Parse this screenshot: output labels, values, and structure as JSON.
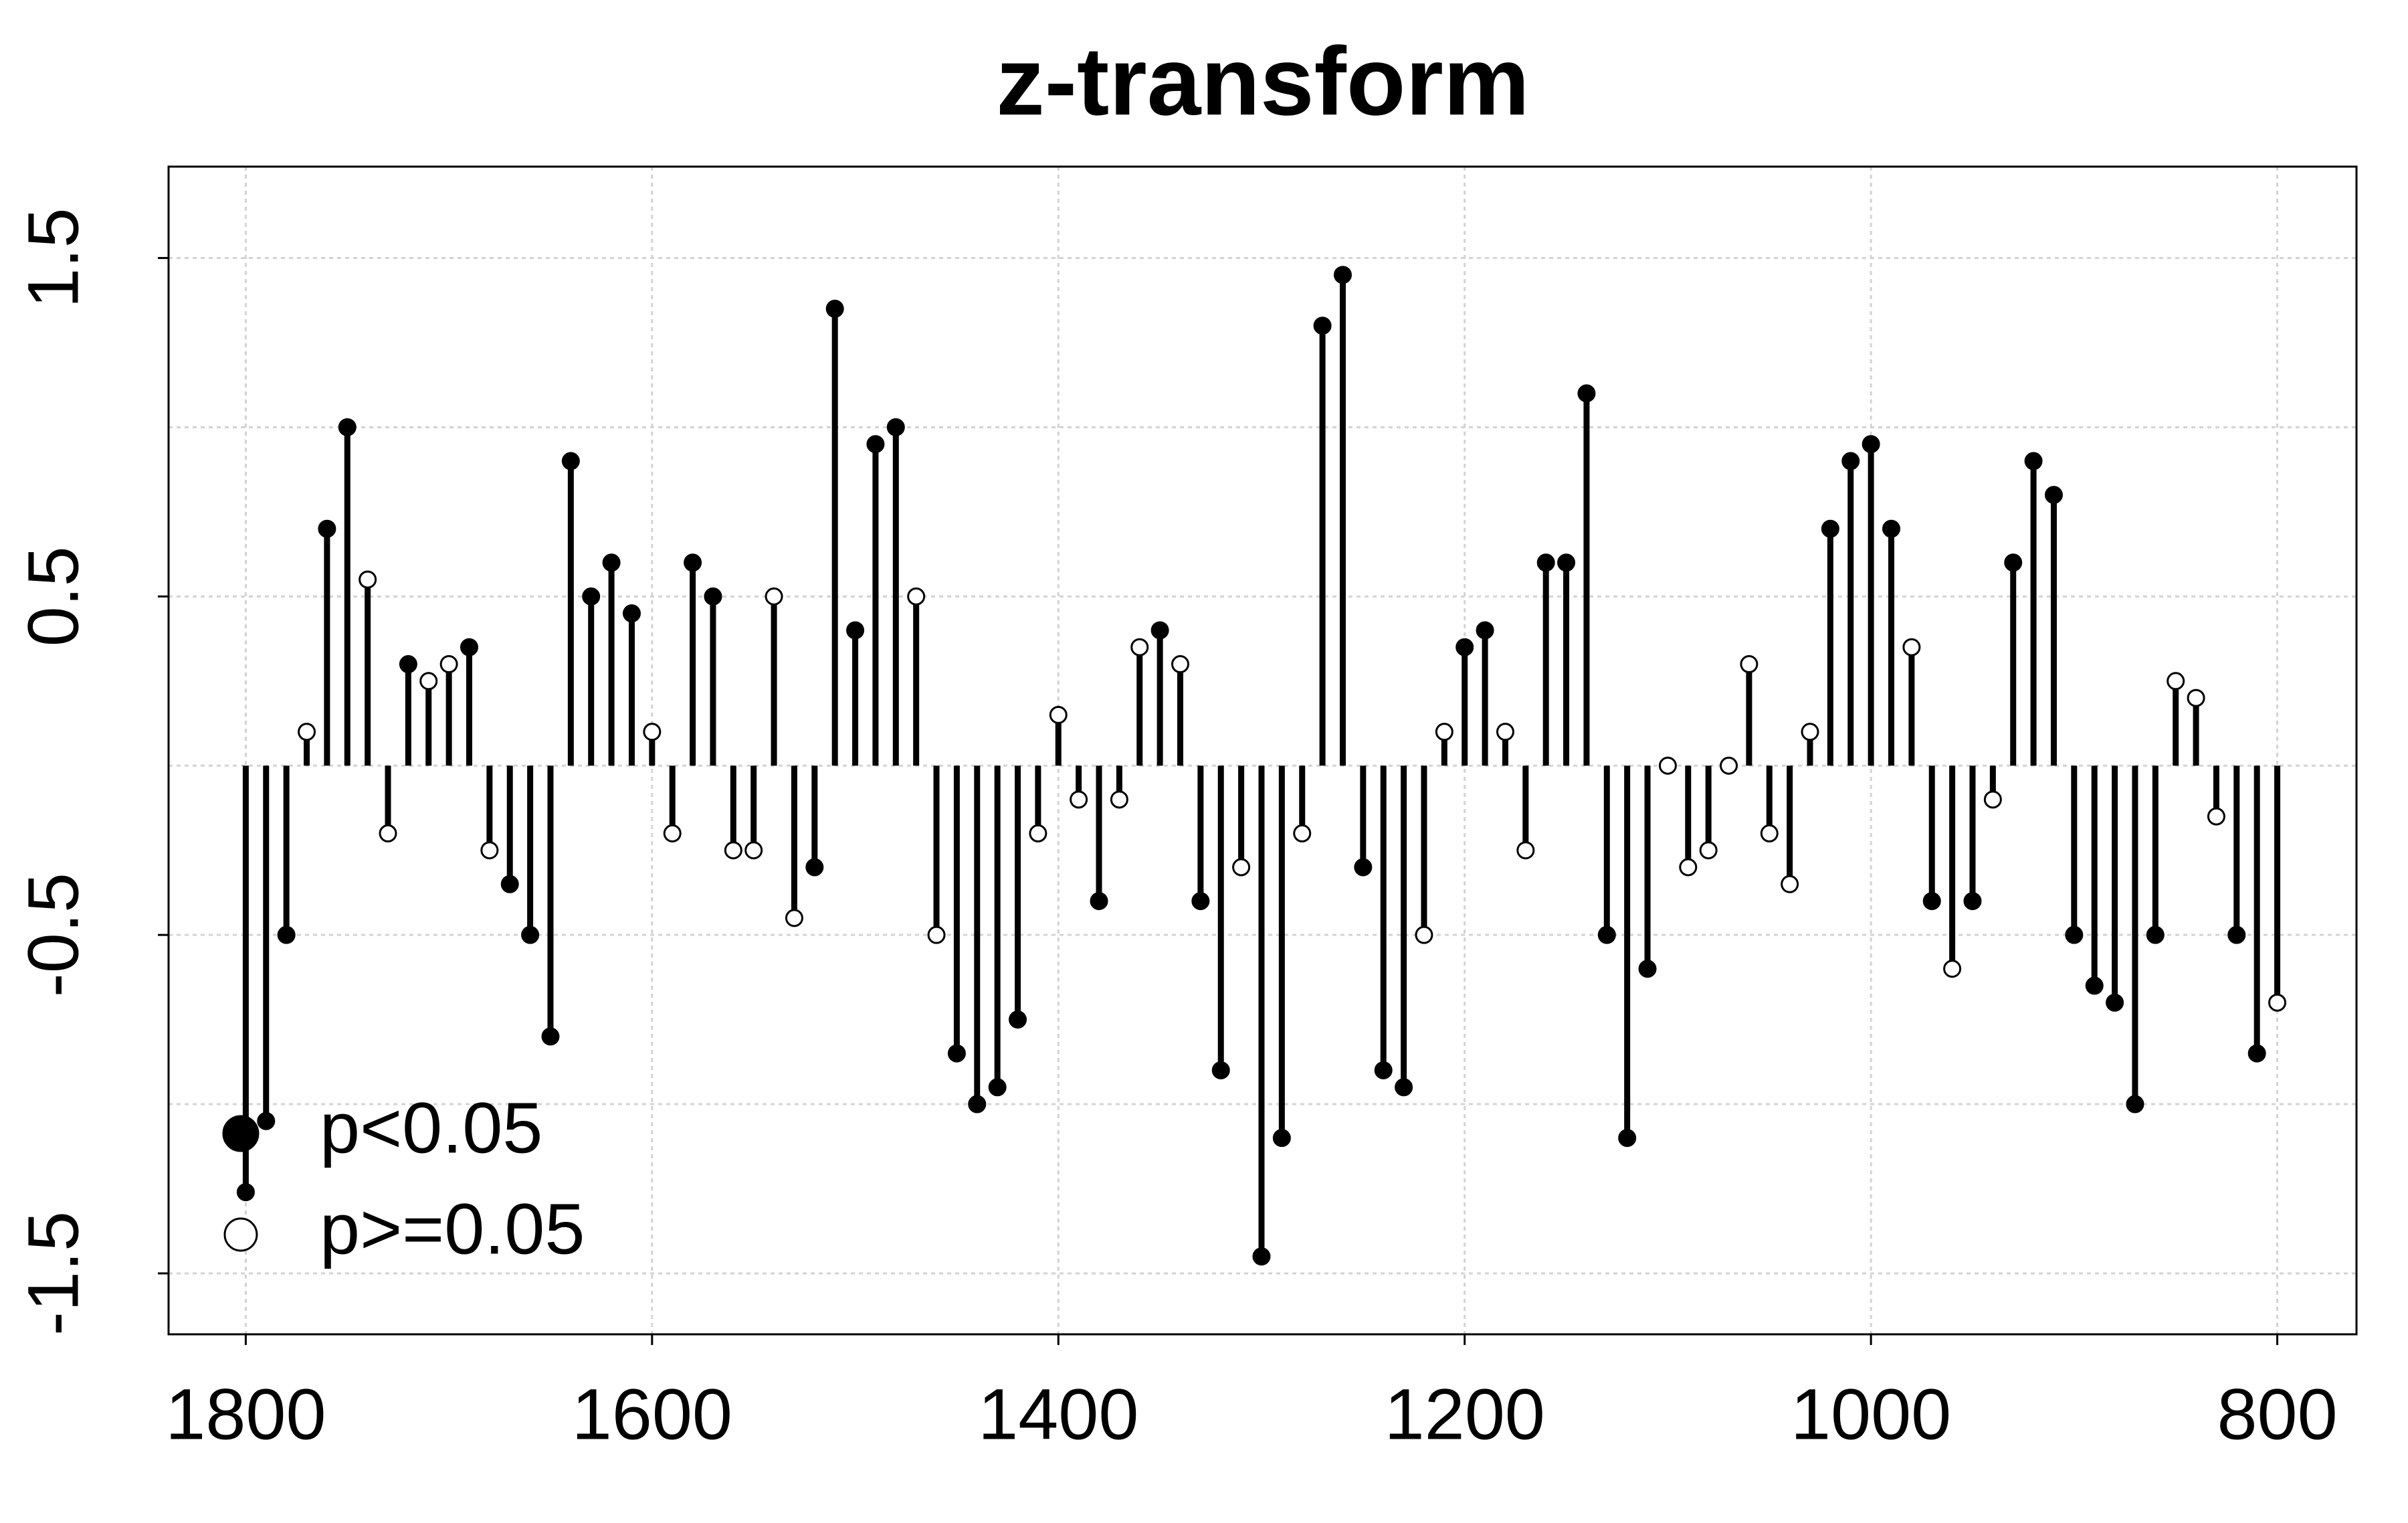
{
  "chart_data": {
    "type": "scatter",
    "title": "z-transform",
    "xlim": [
      1838,
      761
    ],
    "xticks": [
      1800,
      1600,
      1400,
      1200,
      1000,
      800
    ],
    "ylim": [
      -1.68,
      1.77
    ],
    "yticks": [
      -1.5,
      -0.5,
      0.5,
      1.5
    ],
    "grid_yticks": [
      -1.5,
      -1,
      -0.5,
      0,
      0.5,
      1,
      1.5
    ],
    "grid": true,
    "vertical_lines": true,
    "legend": "bottom-left",
    "series": [
      {
        "name": "p<0.05",
        "color": "#000000",
        "marker": "filled",
        "x": [
          1800,
          1790,
          1780,
          1760,
          1750,
          1720,
          1690,
          1670,
          1660,
          1650,
          1640,
          1630,
          1620,
          1610,
          1580,
          1570,
          1520,
          1510,
          1500,
          1490,
          1480,
          1450,
          1440,
          1430,
          1420,
          1380,
          1350,
          1330,
          1320,
          1300,
          1290,
          1270,
          1260,
          1250,
          1240,
          1230,
          1200,
          1190,
          1160,
          1150,
          1140,
          1130,
          1120,
          1110,
          1020,
          1010,
          1000,
          990,
          970,
          950,
          930,
          920,
          910,
          900,
          890,
          880,
          870,
          860,
          820,
          810
        ],
        "values": [
          -1.26,
          -1.05,
          -0.5,
          0.7,
          1.0,
          0.3,
          0.35,
          -0.35,
          -0.5,
          -0.8,
          0.9,
          0.5,
          0.6,
          0.45,
          0.6,
          0.5,
          -0.3,
          1.35,
          0.4,
          0.95,
          1.0,
          -0.85,
          -1.0,
          -0.95,
          -0.75,
          -0.4,
          0.4,
          -0.4,
          -0.9,
          -1.45,
          -1.1,
          1.3,
          1.45,
          -0.3,
          -0.9,
          -0.95,
          0.35,
          0.4,
          0.6,
          0.6,
          1.1,
          -0.5,
          -1.1,
          -0.6,
          0.7,
          0.9,
          0.95,
          0.7,
          -0.4,
          -0.4,
          0.6,
          0.9,
          0.8,
          -0.5,
          -0.65,
          -0.7,
          -1.0,
          -0.5,
          -0.5,
          -0.85
        ]
      },
      {
        "name": "p>=0.05",
        "color": "#000000",
        "marker": "open",
        "x": [
          1770,
          1740,
          1730,
          1710,
          1700,
          1680,
          1600,
          1590,
          1560,
          1550,
          1540,
          1530,
          1470,
          1460,
          1410,
          1400,
          1390,
          1370,
          1360,
          1340,
          1310,
          1280,
          1220,
          1210,
          1180,
          1170,
          1100,
          1090,
          1080,
          1070,
          1060,
          1050,
          1040,
          1030,
          980,
          960,
          940,
          850,
          840,
          830,
          800
        ],
        "values": [
          0.1,
          0.55,
          -0.2,
          0.25,
          0.3,
          -0.25,
          0.1,
          -0.2,
          -0.25,
          -0.25,
          0.5,
          -0.45,
          0.5,
          -0.5,
          -0.2,
          0.15,
          -0.1,
          -0.1,
          0.35,
          0.3,
          -0.3,
          -0.2,
          -0.5,
          0.1,
          0.1,
          -0.25,
          0.0,
          -0.3,
          -0.25,
          0.0,
          0.3,
          -0.2,
          -0.35,
          0.1,
          0.35,
          -0.6,
          -0.1,
          0.25,
          0.2,
          -0.15,
          -0.7
        ]
      }
    ]
  }
}
